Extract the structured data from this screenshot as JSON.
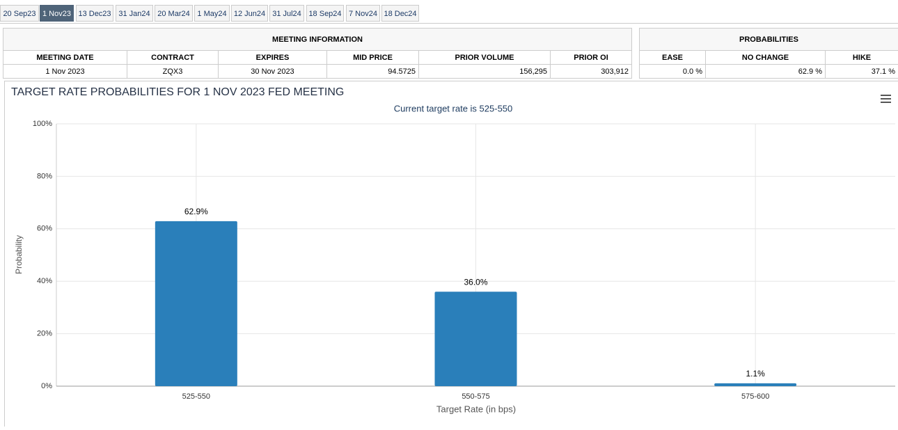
{
  "tabs": [
    "20 Sep23",
    "1 Nov23",
    "13 Dec23",
    "31 Jan24",
    "20 Mar24",
    "1 May24",
    "12 Jun24",
    "31 Jul24",
    "18 Sep24",
    "7 Nov24",
    "18 Dec24"
  ],
  "meeting_info": {
    "title": "MEETING INFORMATION",
    "columns": [
      "MEETING DATE",
      "CONTRACT",
      "EXPIRES",
      "MID PRICE",
      "PRIOR VOLUME",
      "PRIOR OI"
    ],
    "rows": [
      [
        "1 Nov 2023",
        "ZQX3",
        "30 Nov 2023",
        "94.5725",
        "156,295",
        "303,912"
      ]
    ]
  },
  "probabilities": {
    "title": "PROBABILITIES",
    "columns": [
      "EASE",
      "NO CHANGE",
      "HIKE"
    ],
    "rows": [
      [
        "0.0 %",
        "62.9 %",
        "37.1 %"
      ]
    ]
  },
  "chart_data": {
    "type": "bar",
    "title": "TARGET RATE PROBABILITIES FOR 1 NOV 2023 FED MEETING",
    "subtitle": "Current target rate is 525-550",
    "categories": [
      "525-550",
      "550-575",
      "575-600"
    ],
    "values": [
      62.9,
      36.0,
      1.1
    ],
    "value_labels": [
      "62.9%",
      "36.0%",
      "1.1%"
    ],
    "color": "#2a7fba",
    "xlabel": "Target Rate (in bps)",
    "ylabel": "Probability",
    "ylim": [
      0,
      100
    ],
    "yticks": [
      {
        "value": 0,
        "label": "0%"
      },
      {
        "value": 20,
        "label": "20%"
      },
      {
        "value": 40,
        "label": "40%"
      },
      {
        "value": 60,
        "label": "60%"
      },
      {
        "value": 80,
        "label": "80%"
      },
      {
        "value": 100,
        "label": "100%"
      }
    ],
    "grid": true
  }
}
